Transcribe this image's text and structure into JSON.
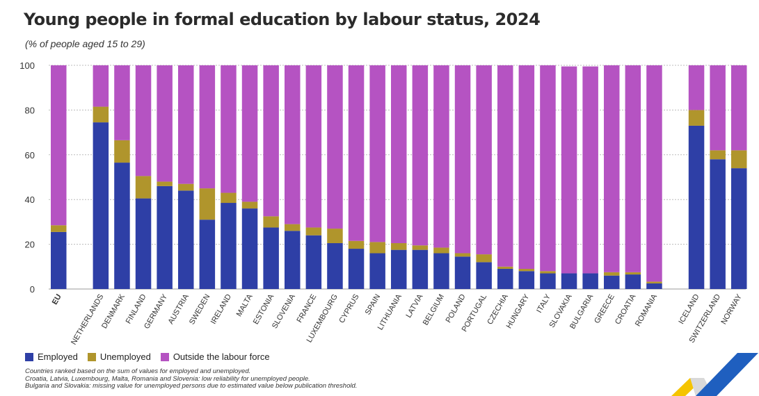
{
  "title": "Young people in formal education by labour status, 2024",
  "subtitle": "(% of people aged 15 to 29)",
  "legend": [
    {
      "label": "Employed",
      "color": "#2e3fa6"
    },
    {
      "label": "Unemployed",
      "color": "#b0952c"
    },
    {
      "label": "Outside the labour force",
      "color": "#b553c2"
    }
  ],
  "notes": [
    "Countries ranked based on the sum of values for employed and unemployed.",
    "Croatia, Latvia, Luxembourg, Malta, Romania and Slovenia: low reliability for unemployed people.",
    "Bulgaria and Slovakia: missing value for unemployed persons due to estimated value below publication threshold."
  ],
  "chart_data": {
    "type": "bar",
    "stacked": true,
    "title": "Young people in formal education by labour status, 2024",
    "ylabel": "% of people aged 15 to 29",
    "ylim": [
      0,
      100
    ],
    "yticks": [
      0,
      20,
      40,
      60,
      80,
      100
    ],
    "grid": true,
    "groups": [
      [
        "EU"
      ],
      [
        "NETHERLANDS",
        "DENMARK",
        "FINLAND",
        "GERMANY",
        "AUSTRIA",
        "SWEDEN",
        "IRELAND",
        "MALTA",
        "ESTONIA",
        "SLOVENIA",
        "FRANCE",
        "LUXEMBOURG",
        "CYPRUS",
        "SPAIN",
        "LITHUANIA",
        "LATVIA",
        "BELGIUM",
        "POLAND",
        "PORTUGAL",
        "CZECHIA",
        "HUNGARY",
        "ITALY",
        "SLOVAKIA",
        "BULGARIA",
        "GREECE",
        "CROATIA",
        "ROMANIA"
      ],
      [
        "ICELAND",
        "SWITZERLAND",
        "NORWAY"
      ]
    ],
    "categories": [
      "EU",
      "NETHERLANDS",
      "DENMARK",
      "FINLAND",
      "GERMANY",
      "AUSTRIA",
      "SWEDEN",
      "IRELAND",
      "MALTA",
      "ESTONIA",
      "SLOVENIA",
      "FRANCE",
      "LUXEMBOURG",
      "CYPRUS",
      "SPAIN",
      "LITHUANIA",
      "LATVIA",
      "BELGIUM",
      "POLAND",
      "PORTUGAL",
      "CZECHIA",
      "HUNGARY",
      "ITALY",
      "SLOVAKIA",
      "BULGARIA",
      "GREECE",
      "CROATIA",
      "ROMANIA",
      "ICELAND",
      "SWITZERLAND",
      "NORWAY"
    ],
    "series": [
      {
        "name": "Employed",
        "color": "#2e3fa6",
        "values": [
          25.5,
          74.5,
          56.5,
          40.5,
          46.0,
          44.0,
          31.0,
          38.5,
          36.0,
          27.5,
          26.0,
          24.0,
          20.5,
          18.0,
          16.0,
          17.5,
          17.5,
          16.0,
          14.5,
          12.0,
          9.0,
          8.0,
          7.0,
          7.0,
          7.0,
          6.0,
          6.5,
          2.5,
          73.0,
          58.0,
          54.0
        ]
      },
      {
        "name": "Unemployed",
        "color": "#b0952c",
        "values": [
          3.0,
          7.0,
          10.0,
          10.0,
          2.0,
          3.0,
          14.0,
          4.5,
          3.0,
          5.0,
          3.0,
          3.5,
          6.5,
          3.5,
          5.0,
          3.0,
          2.0,
          2.5,
          1.5,
          3.5,
          1.0,
          1.0,
          1.0,
          0,
          0,
          1.5,
          1.0,
          0.8,
          7.0,
          4.0,
          8.0
        ]
      },
      {
        "name": "Outside the labour force",
        "color": "#b553c2",
        "values": [
          71.5,
          18.5,
          33.5,
          49.5,
          52.0,
          53.0,
          55.0,
          57.0,
          61.0,
          67.5,
          71.0,
          72.5,
          73.0,
          78.5,
          79.0,
          79.5,
          80.5,
          81.5,
          84.0,
          84.5,
          90.0,
          91.0,
          92.0,
          92.5,
          92.5,
          92.5,
          92.5,
          96.7,
          20.0,
          38.0,
          38.0
        ]
      }
    ]
  }
}
